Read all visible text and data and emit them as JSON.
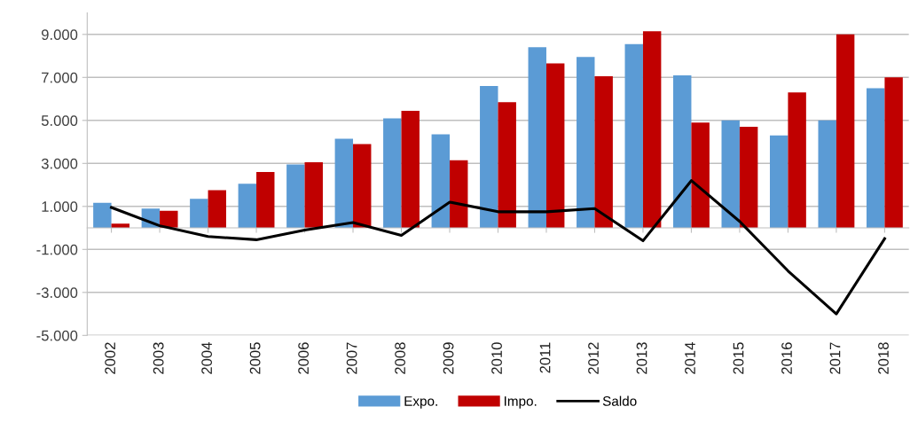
{
  "chart_data": {
    "type": "bar",
    "categories": [
      "2002",
      "2003",
      "2004",
      "2005",
      "2006",
      "2007",
      "2008",
      "2009",
      "2010",
      "2011",
      "2012",
      "2013",
      "2014",
      "2015",
      "2016",
      "2017",
      "2018"
    ],
    "series": [
      {
        "name": "Expo.",
        "color": "#5b9bd5",
        "values": [
          1170,
          900,
          1350,
          2050,
          2950,
          4150,
          5100,
          4350,
          6600,
          8400,
          7950,
          8550,
          7100,
          5000,
          4300,
          5000,
          6500
        ]
      },
      {
        "name": "Impo.",
        "color": "#c00000",
        "values": [
          200,
          800,
          1750,
          2600,
          3050,
          3900,
          5450,
          3150,
          5850,
          7650,
          7050,
          9150,
          4900,
          4700,
          6300,
          9000,
          7000
        ]
      },
      {
        "name": "Saldo",
        "type": "line",
        "color": "#000000",
        "values": [
          950,
          100,
          -400,
          -550,
          -100,
          250,
          -350,
          1200,
          750,
          750,
          900,
          -600,
          2200,
          300,
          -2000,
          -4000,
          -500
        ]
      }
    ],
    "ylim": [
      -5000,
      10000
    ],
    "yticks": [
      {
        "value": -5000,
        "label": "-5.000"
      },
      {
        "value": -3000,
        "label": "-3.000"
      },
      {
        "value": -1000,
        "label": "-1.000"
      },
      {
        "value": 1000,
        "label": "1.000"
      },
      {
        "value": 3000,
        "label": "3.000"
      },
      {
        "value": 5000,
        "label": "5.000"
      },
      {
        "value": 7000,
        "label": "7.000"
      },
      {
        "value": 9000,
        "label": "9.000"
      }
    ],
    "grid": "y",
    "legend": "bottom",
    "marker": "none",
    "line_style": "solid"
  }
}
